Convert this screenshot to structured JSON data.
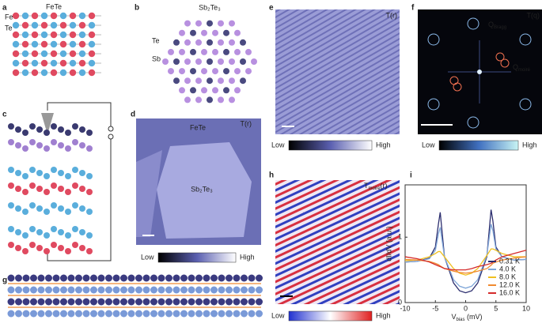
{
  "panels": {
    "a": {
      "label": "a",
      "title": "FeTe",
      "species": [
        "Fe",
        "Te"
      ]
    },
    "b": {
      "label": "b",
      "title": "Sb₂Te₃",
      "species": [
        "Te",
        "Sb"
      ]
    },
    "c": {
      "label": "c"
    },
    "d": {
      "label": "d",
      "image_labels": [
        "FeTe",
        "Sb₂Te₃"
      ],
      "map": "T(r)",
      "colorbar": [
        "Low",
        "High"
      ]
    },
    "e": {
      "label": "e",
      "map": "T(r)",
      "colorbar": [
        "Low",
        "High"
      ]
    },
    "f": {
      "label": "f",
      "map": "T(q)",
      "peaks": [
        {
          "main": "Q",
          "sub": "Bragg"
        },
        {
          "main": "Q",
          "sub": "moiré"
        }
      ],
      "colorbar": [
        "Low",
        "High"
      ]
    },
    "g": {
      "label": "g"
    },
    "h": {
      "label": "h",
      "map": {
        "main": "T",
        "sub": "moiré",
        "tail": "(r)"
      },
      "colorbar": [
        "Low",
        "High"
      ]
    }
  },
  "chart_data": {
    "type": "line",
    "label": "i",
    "x": [
      -10,
      -8,
      -6,
      -5,
      -4.5,
      -4.2,
      -3.5,
      -2,
      -1,
      0,
      1,
      2,
      3.5,
      4.2,
      4.5,
      5,
      6,
      8,
      10
    ],
    "series": [
      {
        "name": "0.31 K",
        "color": "#2b2d6e",
        "values": [
          0.62,
          0.63,
          0.68,
          0.85,
          1.2,
          1.38,
          0.7,
          0.3,
          0.18,
          0.15,
          0.18,
          0.3,
          0.7,
          1.42,
          1.25,
          0.85,
          0.7,
          0.65,
          0.66
        ]
      },
      {
        "name": "4.0 K",
        "color": "#7fa6d8",
        "values": [
          0.62,
          0.63,
          0.67,
          0.8,
          1.05,
          1.15,
          0.7,
          0.35,
          0.25,
          0.22,
          0.25,
          0.35,
          0.72,
          1.2,
          1.1,
          0.82,
          0.7,
          0.65,
          0.66
        ]
      },
      {
        "name": "8.0 K",
        "color": "#f0c020",
        "values": [
          0.64,
          0.65,
          0.7,
          0.75,
          0.78,
          0.78,
          0.7,
          0.52,
          0.45,
          0.42,
          0.45,
          0.52,
          0.72,
          0.82,
          0.82,
          0.8,
          0.75,
          0.7,
          0.7
        ]
      },
      {
        "name": "12.0 K",
        "color": "#f08a30",
        "values": [
          0.66,
          0.65,
          0.63,
          0.6,
          0.58,
          0.56,
          0.52,
          0.48,
          0.46,
          0.45,
          0.46,
          0.48,
          0.52,
          0.57,
          0.6,
          0.62,
          0.65,
          0.68,
          0.7
        ]
      },
      {
        "name": "16.0 K",
        "color": "#d42a2a",
        "values": [
          0.7,
          0.67,
          0.62,
          0.58,
          0.56,
          0.55,
          0.52,
          0.5,
          0.5,
          0.5,
          0.52,
          0.55,
          0.58,
          0.6,
          0.62,
          0.65,
          0.7,
          0.75,
          0.8
        ]
      }
    ],
    "xlim": [
      -10,
      10
    ],
    "ylim": [
      0,
      1.8
    ],
    "xticks": [
      -10,
      -5,
      0,
      5,
      10
    ],
    "yticks": [
      0,
      1
    ],
    "ylabel": "dI/dV (a.u.)",
    "xlabel": {
      "main": "V",
      "sub": "bias",
      "unit": " (mV)"
    },
    "legend": "lower right"
  }
}
